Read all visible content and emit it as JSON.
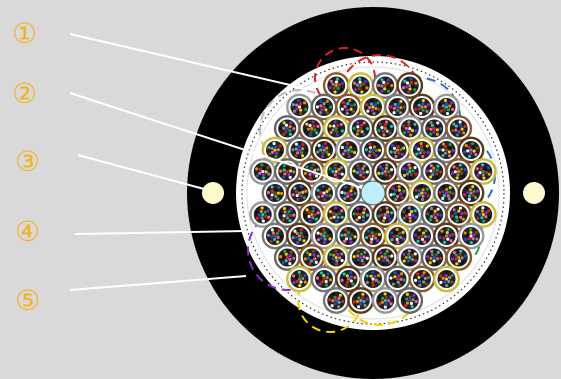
{
  "diagram": {
    "callouts": [
      {
        "label": "①",
        "part": "outer-sheath"
      },
      {
        "label": "②",
        "part": "center-strength-member"
      },
      {
        "label": "③",
        "part": "sheath-strength-member"
      },
      {
        "label": "④",
        "part": "binder-tape"
      },
      {
        "label": "⑤",
        "part": "armor-jacket"
      }
    ],
    "colors": {
      "background": "#d9d9d9",
      "jacket": "#000000",
      "core": "#ffffff",
      "label": "#f0b323",
      "leader": "#ffffff",
      "strength_member": "#fffacd",
      "center_member": "#bfefff"
    },
    "fiber_colors": [
      "#1f4fd1",
      "#f08a00",
      "#17a34a",
      "#8b4513",
      "#8a8a8a",
      "#ffffff",
      "#e02020",
      "#111111",
      "#f2d200",
      "#8b2bd1",
      "#ff5fa2",
      "#20c4c4"
    ],
    "unit_ring_colors": [
      "#666666",
      "#8b5a2b",
      "#cdbb3a",
      "#777777",
      "#5a3a1a",
      "#999999"
    ],
    "group_colors": [
      "#e02020",
      "#2a6ed1",
      "#17a34a",
      "#f2d200",
      "#8b2bd1",
      "#bbbbbb"
    ]
  }
}
